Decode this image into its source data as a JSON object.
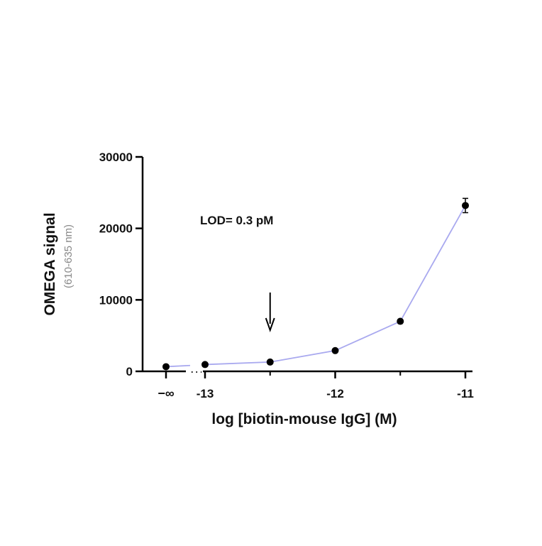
{
  "chart_data": {
    "type": "line",
    "xlabel": "log [biotin-mouse IgG] (M)",
    "ylabel": "OMEGA signal",
    "ylabel_sub": "(610-635 nm)",
    "ylim": [
      0,
      30000
    ],
    "y_ticks": [
      0,
      10000,
      20000,
      30000
    ],
    "y_tick_labels": [
      "0",
      "10000",
      "20000",
      "30000"
    ],
    "x_axis_break": true,
    "x_break_label": "−∞",
    "xlim": [
      -13.25,
      -11
    ],
    "x_ticks": [
      -13,
      -12,
      -11
    ],
    "x_tick_labels": [
      "-13",
      "-12",
      "-11"
    ],
    "grid": false,
    "line_color": "#a9a9ef",
    "marker_color": "#000000",
    "baseline_point": {
      "x": "−∞",
      "y": 650
    },
    "series": [
      {
        "x": [
          -13,
          -12.5,
          -12,
          -11.5,
          -11
        ],
        "y": [
          950,
          1300,
          2900,
          7000,
          23200
        ],
        "error": [
          0,
          0,
          0,
          0,
          1000
        ]
      }
    ],
    "annotations": [
      {
        "text": "LOD= 0.3 pM",
        "arrow_x": -12.5
      }
    ]
  }
}
